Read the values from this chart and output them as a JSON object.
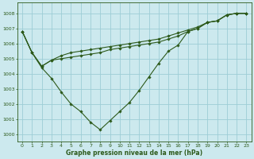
{
  "xlabel": "Graphe pression niveau de la mer (hPa)",
  "background_color": "#cce9ee",
  "grid_color": "#9dcdd6",
  "line_color": "#2d5a1b",
  "marker_color": "#2d5a1b",
  "ylim": [
    999.5,
    1008.7
  ],
  "xlim": [
    -0.5,
    23.5
  ],
  "yticks": [
    1000,
    1001,
    1002,
    1003,
    1004,
    1005,
    1006,
    1007,
    1008
  ],
  "xticks": [
    0,
    1,
    2,
    3,
    4,
    5,
    6,
    7,
    8,
    9,
    10,
    11,
    12,
    13,
    14,
    15,
    16,
    17,
    18,
    19,
    20,
    21,
    22,
    23
  ],
  "series": [
    [
      1006.8,
      1005.4,
      1004.4,
      1003.7,
      1002.8,
      1002.0,
      1001.5,
      1000.8,
      1000.3,
      1000.9,
      1001.5,
      1002.1,
      1002.9,
      1003.8,
      1004.7,
      1005.5,
      1005.9,
      1006.8,
      1007.0,
      1007.4,
      1007.5,
      1007.9,
      1008.0,
      1008.0
    ],
    [
      1006.8,
      1005.4,
      1004.5,
      1004.9,
      1005.0,
      1005.1,
      1005.2,
      1005.3,
      1005.4,
      1005.6,
      1005.7,
      1005.8,
      1005.9,
      1006.0,
      1006.1,
      1006.3,
      1006.5,
      1006.8,
      1007.0,
      1007.4,
      1007.5,
      1007.9,
      1008.0,
      1008.0
    ],
    [
      1006.8,
      1005.4,
      1004.5,
      1004.9,
      1005.2,
      1005.4,
      1005.5,
      1005.6,
      1005.7,
      1005.8,
      1005.9,
      1006.0,
      1006.1,
      1006.2,
      1006.3,
      1006.5,
      1006.7,
      1006.9,
      1007.1,
      1007.4,
      1007.5,
      1007.9,
      1008.0,
      1008.0
    ]
  ]
}
